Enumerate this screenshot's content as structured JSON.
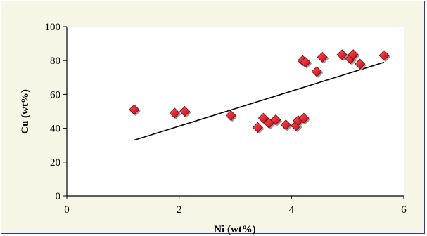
{
  "chart_data": {
    "type": "scatter",
    "xlabel": "Ni (wt%)",
    "ylabel": "Cu (wt%)",
    "xlim": [
      0,
      6
    ],
    "ylim": [
      0,
      100
    ],
    "xticks": [
      "0",
      "2",
      "4",
      "6"
    ],
    "yticks": [
      "0",
      "20",
      "40",
      "60",
      "80",
      "100"
    ],
    "grid": false,
    "legend": "none",
    "marker": "diamond",
    "marker_color": "#e8101a",
    "trendline": {
      "x": [
        1.2,
        5.65
      ],
      "y": [
        33,
        79
      ],
      "color": "#000000"
    },
    "points": [
      {
        "x": 1.2,
        "y": 51
      },
      {
        "x": 1.92,
        "y": 49
      },
      {
        "x": 2.1,
        "y": 50
      },
      {
        "x": 2.92,
        "y": 47.5
      },
      {
        "x": 3.4,
        "y": 40.5
      },
      {
        "x": 3.5,
        "y": 46
      },
      {
        "x": 3.6,
        "y": 43
      },
      {
        "x": 3.72,
        "y": 45
      },
      {
        "x": 3.9,
        "y": 42
      },
      {
        "x": 4.08,
        "y": 41.5
      },
      {
        "x": 4.12,
        "y": 44.5
      },
      {
        "x": 4.22,
        "y": 46
      },
      {
        "x": 4.2,
        "y": 80
      },
      {
        "x": 4.25,
        "y": 79
      },
      {
        "x": 4.45,
        "y": 73.5
      },
      {
        "x": 4.55,
        "y": 82
      },
      {
        "x": 4.9,
        "y": 83.5
      },
      {
        "x": 5.05,
        "y": 81
      },
      {
        "x": 5.1,
        "y": 83.5
      },
      {
        "x": 5.22,
        "y": 78
      },
      {
        "x": 5.65,
        "y": 83
      }
    ]
  }
}
